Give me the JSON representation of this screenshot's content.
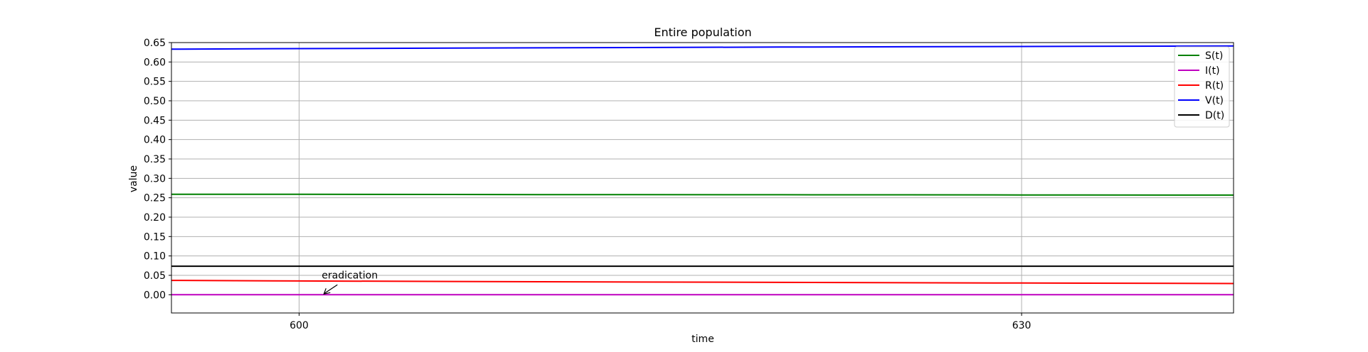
{
  "chart_data": {
    "type": "line",
    "title": "Entire population",
    "xlabel": "time",
    "ylabel": "value",
    "xlim": [
      594.7,
      638.8
    ],
    "ylim": [
      -0.047,
      0.65
    ],
    "xticks": [
      600,
      630
    ],
    "yticks": [
      0.0,
      0.05,
      0.1,
      0.15,
      0.2,
      0.25,
      0.3,
      0.35,
      0.4,
      0.45,
      0.5,
      0.55,
      0.6,
      0.65
    ],
    "ytick_labels": [
      "0.00",
      "0.05",
      "0.10",
      "0.15",
      "0.20",
      "0.25",
      "0.30",
      "0.35",
      "0.40",
      "0.45",
      "0.50",
      "0.55",
      "0.60",
      "0.65"
    ],
    "grid": true,
    "legend_position": "top-right",
    "series": [
      {
        "name": "S(t)",
        "color": "#008000",
        "x": [
          594.7,
          600,
          610,
          620,
          630,
          638.8
        ],
        "y": [
          0.259,
          0.2588,
          0.2582,
          0.2577,
          0.2572,
          0.2568
        ]
      },
      {
        "name": "I(t)",
        "color": "#bf00bf",
        "x": [
          594.7,
          638.8
        ],
        "y": [
          0.0,
          0.0
        ]
      },
      {
        "name": "R(t)",
        "color": "#ff0000",
        "x": [
          594.7,
          600,
          610,
          620,
          630,
          638.8
        ],
        "y": [
          0.037,
          0.0355,
          0.0335,
          0.0318,
          0.0302,
          0.029
        ]
      },
      {
        "name": "V(t)",
        "color": "#0000ff",
        "x": [
          594.7,
          600,
          610,
          620,
          630,
          638.8
        ],
        "y": [
          0.633,
          0.6345,
          0.6365,
          0.6385,
          0.64,
          0.6412
        ]
      },
      {
        "name": "D(t)",
        "color": "#000000",
        "x": [
          594.7,
          638.8
        ],
        "y": [
          0.0735,
          0.0735
        ]
      }
    ],
    "annotations": [
      {
        "text": "eradication",
        "x": 601,
        "y": 0.0
      }
    ]
  }
}
